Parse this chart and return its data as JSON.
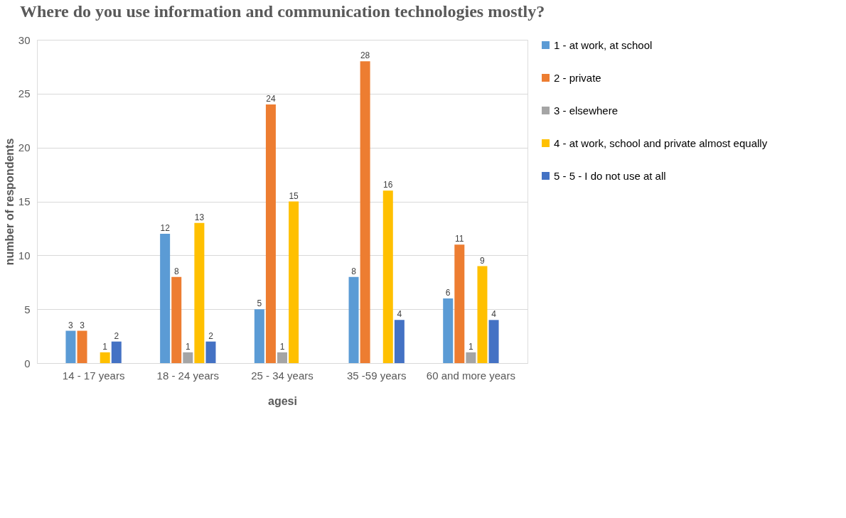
{
  "chart_data": {
    "type": "bar",
    "title": "Where do you use information and communication technologies mostly?",
    "xlabel": "agesi",
    "ylabel": "number of respondents",
    "categories": [
      "14 - 17 years",
      "18 - 24 years",
      "25 - 34 years",
      "35 -59 years",
      "60 and more years"
    ],
    "series": [
      {
        "name": "1 - at work, at school",
        "color": "#5b9bd5",
        "values": [
          3,
          12,
          5,
          8,
          6
        ]
      },
      {
        "name": "2 - private",
        "color": "#ed7d31",
        "values": [
          3,
          8,
          24,
          28,
          11
        ]
      },
      {
        "name": "3 - elsewhere",
        "color": "#a5a5a5",
        "values": [
          null,
          1,
          1,
          null,
          1
        ]
      },
      {
        "name": "4 - at work, school and private almost equally",
        "color": "#ffc000",
        "values": [
          1,
          13,
          15,
          16,
          9
        ]
      },
      {
        "name": "5 - 5 - I do not use at all",
        "color": "#4472c4",
        "values": [
          2,
          2,
          null,
          4,
          4
        ]
      }
    ],
    "ylim": [
      0,
      30
    ],
    "yticks": [
      0,
      5,
      10,
      15,
      20,
      25,
      30
    ],
    "grid": "y",
    "legend": "right",
    "data_labels": true
  }
}
